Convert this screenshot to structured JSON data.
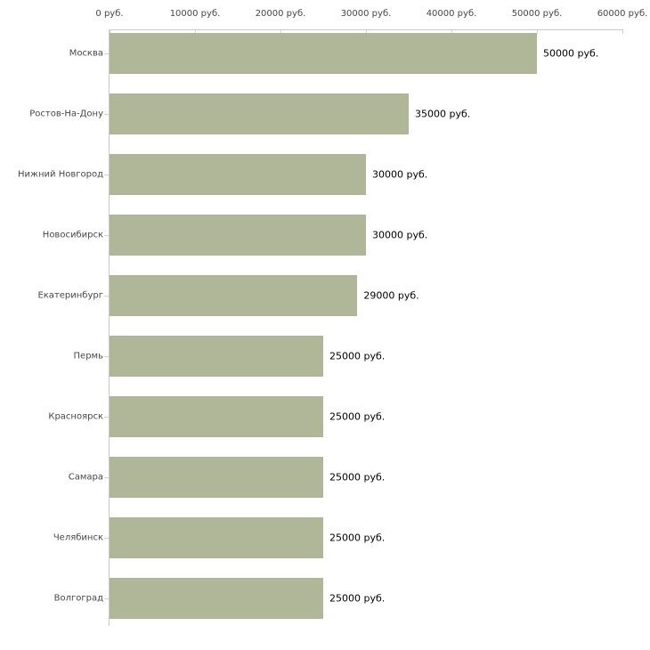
{
  "chart_data": {
    "type": "bar",
    "orientation": "horizontal",
    "categories": [
      "Москва",
      "Ростов-На-Дону",
      "Нижний Новгород",
      "Новосибирск",
      "Екатеринбург",
      "Пермь",
      "Красноярск",
      "Самара",
      "Челябинск",
      "Волгоград"
    ],
    "values": [
      50000,
      35000,
      30000,
      30000,
      29000,
      25000,
      25000,
      25000,
      25000,
      25000
    ],
    "value_labels": [
      "50000 руб.",
      "35000 руб.",
      "30000 руб.",
      "30000 руб.",
      "29000 руб.",
      "25000 руб.",
      "25000 руб.",
      "25000 руб.",
      "25000 руб.",
      "25000 руб."
    ],
    "x_axis": {
      "min": 0,
      "max": 60000,
      "ticks": [
        {
          "value": 0,
          "label": "0 руб."
        },
        {
          "value": 10000,
          "label": "10000 руб."
        },
        {
          "value": 20000,
          "label": "20000 руб."
        },
        {
          "value": 30000,
          "label": "30000 руб."
        },
        {
          "value": 40000,
          "label": "40000 руб."
        },
        {
          "value": 50000,
          "label": "50000 руб."
        },
        {
          "value": 60000,
          "label": "60000 руб."
        }
      ],
      "position": "top"
    },
    "xlabel": "",
    "ylabel": "",
    "legend": "none",
    "grid": "off",
    "colors": {
      "bar": "#b0b698",
      "axis_line": "#c9c9c9",
      "tick_mark": "#d5d6c0",
      "axis_label": "#474747",
      "value_label": "#000000",
      "background": "#ffffff"
    }
  }
}
